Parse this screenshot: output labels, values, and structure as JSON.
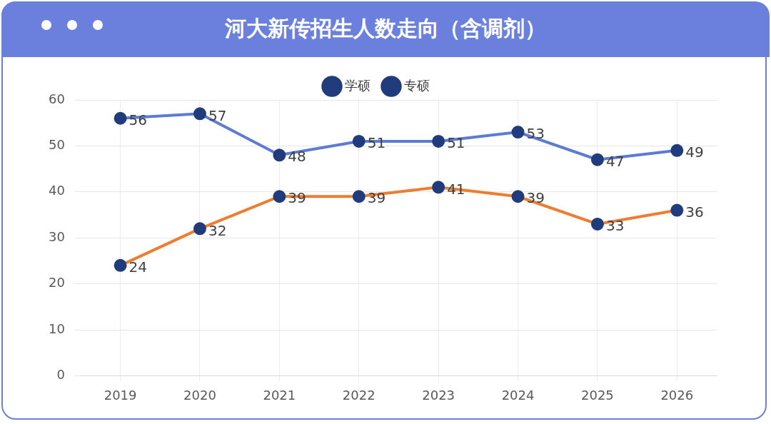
{
  "chart_data": {
    "type": "line",
    "title": "河大新传招生人数走向（含调剂）",
    "categories": [
      "2019",
      "2020",
      "2021",
      "2022",
      "2023",
      "2024",
      "2025",
      "2026"
    ],
    "series": [
      {
        "name": "学硕",
        "color": "#ed7d31",
        "values": [
          24,
          32,
          39,
          39,
          41,
          39,
          33,
          36
        ]
      },
      {
        "name": "专硕",
        "color": "#5b7bd5",
        "values": [
          56,
          57,
          48,
          51,
          51,
          53,
          47,
          49
        ]
      }
    ],
    "ylim": [
      0,
      60
    ],
    "yticks": [
      0,
      10,
      20,
      30,
      40,
      50,
      60
    ],
    "grid": true,
    "legend": "top",
    "data_labels": true,
    "marker": "circle"
  }
}
